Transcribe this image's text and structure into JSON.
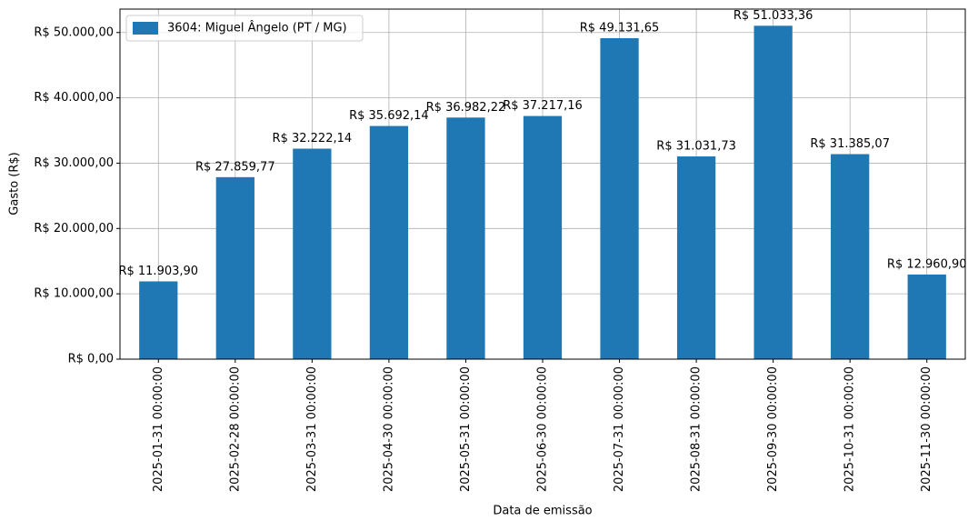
{
  "chart_data": {
    "type": "bar",
    "x_label": "Data de emissão",
    "y_label": "Gasto (R$)",
    "categories": [
      "2025-01-31 00:00:00",
      "2025-02-28 00:00:00",
      "2025-03-31 00:00:00",
      "2025-04-30 00:00:00",
      "2025-05-31 00:00:00",
      "2025-06-30 00:00:00",
      "2025-07-31 00:00:00",
      "2025-08-31 00:00:00",
      "2025-09-30 00:00:00",
      "2025-10-31 00:00:00",
      "2025-11-30 00:00:00"
    ],
    "series": [
      {
        "name": "3604: Miguel Ângelo (PT / MG)",
        "color": "#1f77b4",
        "values": [
          11903.9,
          27859.77,
          32222.14,
          35692.14,
          36982.22,
          37217.16,
          49131.65,
          31031.73,
          51033.36,
          31385.07,
          12960.9
        ],
        "value_labels": [
          "R$ 11.903,90",
          "R$ 27.859,77",
          "R$ 32.222,14",
          "R$ 35.692,14",
          "R$ 36.982,22",
          "R$ 37.217,16",
          "R$ 49.131,65",
          "R$ 31.031,73",
          "R$ 51.033,36",
          "R$ 31.385,07",
          "R$ 12.960,90"
        ]
      }
    ],
    "ylim": [
      0,
      53585
    ],
    "yticks": [
      {
        "value": 0,
        "label": "R$ 0,00"
      },
      {
        "value": 10000,
        "label": "R$ 10.000,00"
      },
      {
        "value": 20000,
        "label": "R$ 20.000,00"
      },
      {
        "value": 30000,
        "label": "R$ 30.000,00"
      },
      {
        "value": 40000,
        "label": "R$ 40.000,00"
      },
      {
        "value": 50000,
        "label": "R$ 50.000,00"
      }
    ],
    "grid": true,
    "legend": "upper-left"
  }
}
